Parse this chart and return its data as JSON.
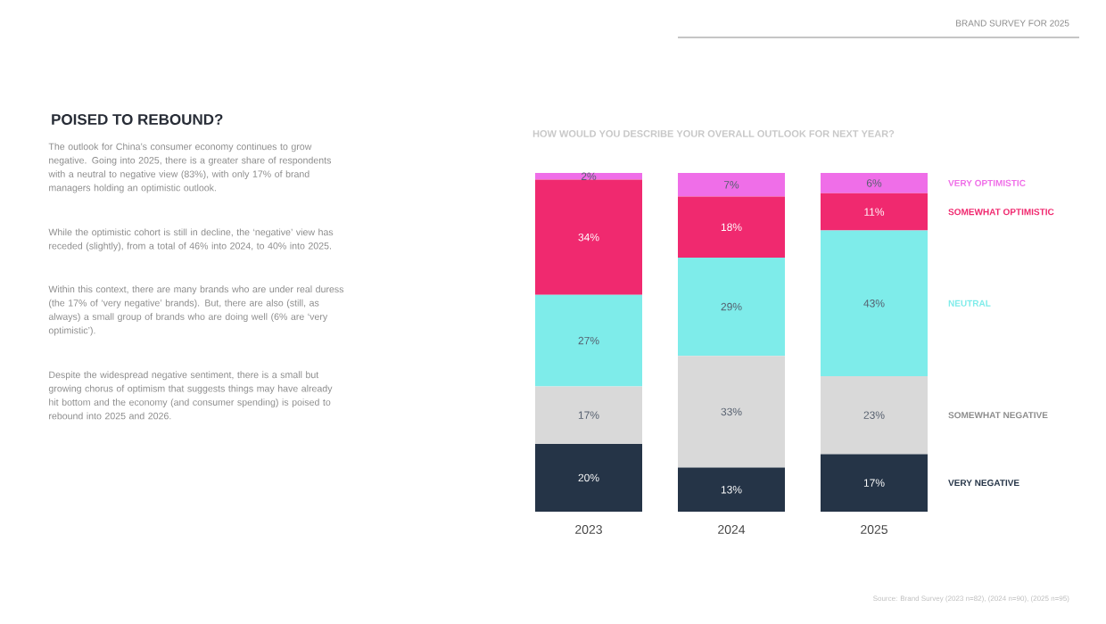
{
  "chart_data": {
    "type": "bar",
    "stacked": true,
    "title": "HOW WOULD YOU DESCRIBE YOUR OVERALL OUTLOOK FOR NEXT YEAR?",
    "categories": [
      "2023",
      "2024",
      "2025"
    ],
    "legend": "right",
    "series": [
      {
        "name": "VERY NEGATIVE",
        "color": "#253447",
        "values": [
          20,
          13,
          17
        ],
        "value_labels": [
          "20%",
          "13%",
          "17%"
        ]
      },
      {
        "name": "SOMEWHAT NEGATIVE",
        "color": "#d9d9d9",
        "values": [
          17,
          33,
          23
        ],
        "value_labels": [
          "17%",
          "33%",
          "23%"
        ]
      },
      {
        "name": "NEUTRAL",
        "color": "#7eecea",
        "values": [
          27,
          29,
          43
        ],
        "value_labels": [
          "27%",
          "29%",
          "43%"
        ]
      },
      {
        "name": "SOMEWHAT OPTIMISTIC",
        "color": "#f0296f",
        "values": [
          34,
          18,
          11
        ],
        "value_labels": [
          "34%",
          "18%",
          "11%"
        ]
      },
      {
        "name": "VERY OPTIMISTIC",
        "color": "#ef6ee8",
        "values": [
          2,
          7,
          6
        ],
        "value_labels": [
          "2%",
          "7%",
          "6%"
        ]
      }
    ],
    "annotations": [
      "BRAND SURVEY FOR 2025",
      "POISED TO REBOUND?",
      "The outlook for China’s consumer economy continues to grow negative. Going into 2025, there is a greater share of respondents with a neutral to negative view (83%), with only 17% of brand managers holding an optimistic outlook.",
      "While the optimistic cohort is still in decline, the ‘negative’ view has receded (slightly), from a total of 46% into 2024, to 40% into 2025.",
      "Within this context, there are many brands who are under real duress (the 17% of ‘very negative’ brands). But, there are also (still, as always) a small group of brands who are doing well (6% are ‘very optimistic’).",
      "Despite the widespread negative sentiment, there is a small but growing chorus of optimism that suggests things may have already hit bottom and the economy (and consumer spending) is poised to rebound into 2025 and 2026.",
      "Source: Brand Survey (2023 n=82), (2024 n=90), (2025 n=95)"
    ]
  }
}
